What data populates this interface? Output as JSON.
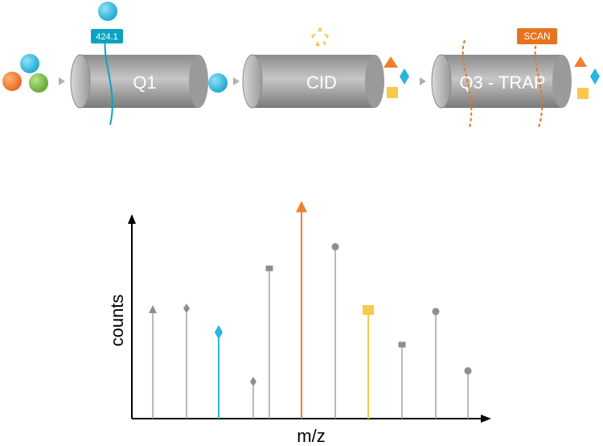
{
  "stages": [
    {
      "label": "Q1"
    },
    {
      "label": "CID"
    },
    {
      "label": "Q3 - TRAP"
    }
  ],
  "tags": {
    "precursor_mass": "424.1",
    "scan": "SCAN"
  },
  "colors": {
    "cyan": "#29b6dc",
    "orange": "#f07f2d",
    "green": "#7ac143",
    "yellow": "#f8c94a",
    "gray": "#9a9a9a",
    "tag_blue": "#0aa3c2",
    "tag_orange": "#e8731e"
  },
  "chart_data": {
    "type": "stem",
    "xlabel": "m/z",
    "ylabel": "counts",
    "y_range": [
      0,
      280
    ],
    "peaks": [
      {
        "marker": "triangle",
        "color": "gray",
        "counts": 139
      },
      {
        "marker": "diamond",
        "color": "gray",
        "counts": 143
      },
      {
        "marker": "diamond",
        "color": "cyan",
        "counts": 112
      },
      {
        "marker": "diamond",
        "color": "gray",
        "counts": 48
      },
      {
        "marker": "square",
        "color": "gray",
        "counts": 195
      },
      {
        "marker": "triangle",
        "color": "orange",
        "counts": 270
      },
      {
        "marker": "circle",
        "color": "gray",
        "counts": 223
      },
      {
        "marker": "square",
        "color": "yellow",
        "counts": 141
      },
      {
        "marker": "square",
        "color": "gray",
        "counts": 96
      },
      {
        "marker": "circle",
        "color": "gray",
        "counts": 139
      },
      {
        "marker": "circle",
        "color": "gray",
        "counts": 62
      }
    ]
  }
}
